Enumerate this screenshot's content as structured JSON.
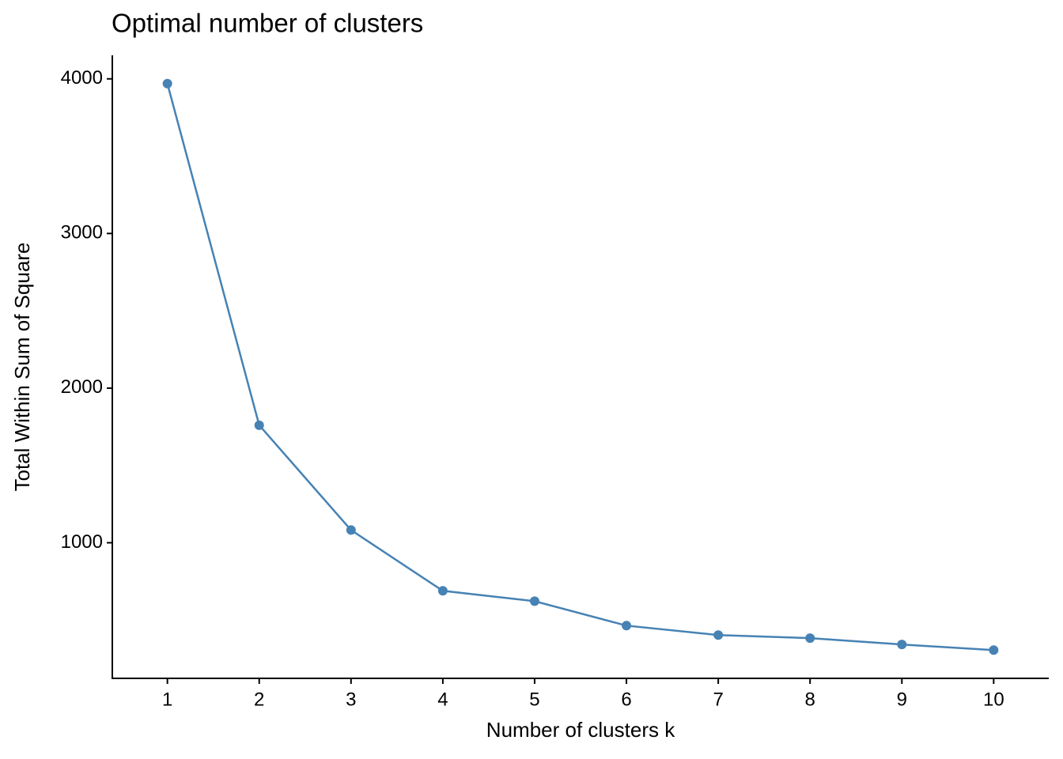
{
  "chart_data": {
    "type": "line",
    "title": "Optimal number of clusters",
    "x_label": "Number of clusters k",
    "y_label": "Total Within Sum of Square",
    "categories": [
      "1",
      "2",
      "3",
      "4",
      "5",
      "6",
      "7",
      "8",
      "9",
      "10"
    ],
    "series": [
      {
        "color": "#4682b4",
        "values": [
          3969,
          1760,
          1082,
          689,
          622,
          464,
          403,
          383,
          342,
          306
        ]
      }
    ],
    "ylim": [
      123,
      4152
    ],
    "yticks": [
      1000,
      2000,
      3000,
      4000
    ],
    "grid": false
  }
}
